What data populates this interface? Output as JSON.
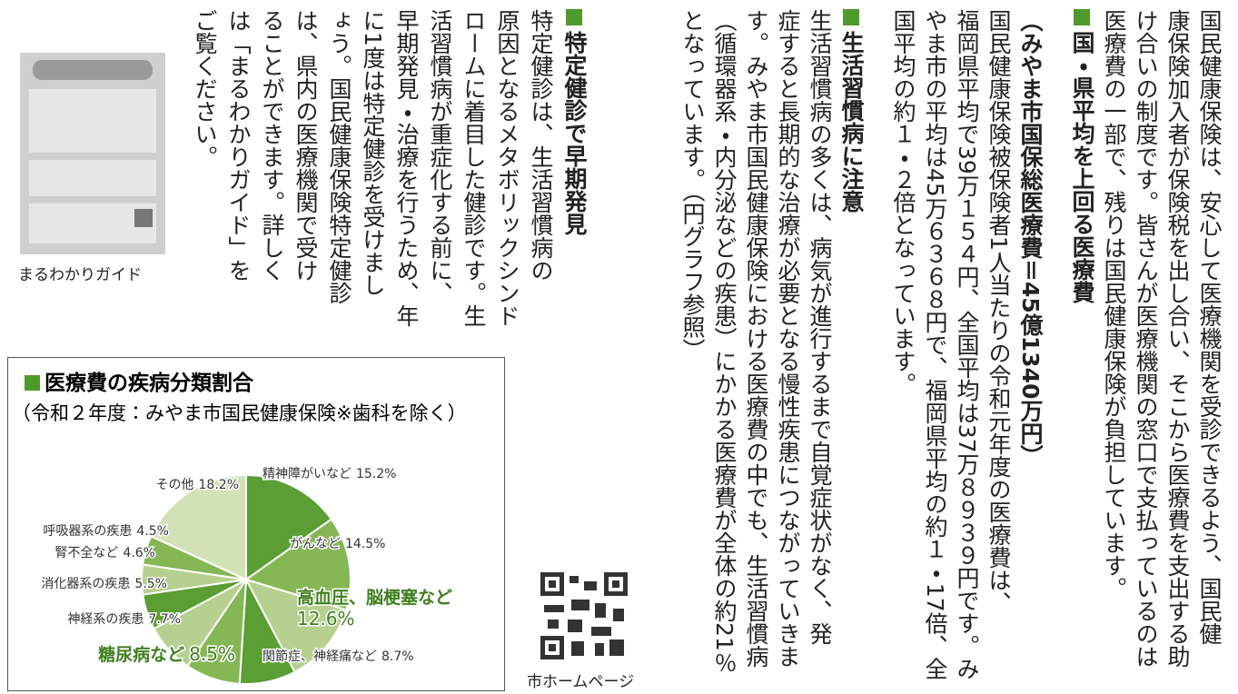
{
  "intro": {
    "lines": [
      "国民健康保険は、安心して医療機関を受診できるよう、国民健",
      "康保険加入者が保険税を出し合い、そこから医療費を支出する助",
      "け合いの制度です。皆さんが医療機関の窓口で支払っているのは",
      "医療費の一部で、残りは国民健康保険が負担しています。"
    ]
  },
  "sections": [
    {
      "heading": "国・県平均を上回る医療費",
      "subheading": "（みやま市国保総医療費＝45億1340万円）",
      "lines": [
        "国民健康保険被保険者1人当たりの令和元年度の医療費は、",
        "福岡県平均で39万１５４円、全国平均は37万８９３９円です。み",
        "やま市の平均は45万６３６８円で、福岡県平均の約１・17倍、全",
        "国平均の約１・２倍となっています。"
      ]
    },
    {
      "heading": "生活習慣病に注意",
      "lines": [
        "生活習慣病の多くは、病気が進行するまで自覚症状がなく、発",
        "症すると長期的な治療が必要となる慢性疾患につながっていきま",
        "す。みやま市国民健康保険における医療費の中でも、生活習慣病",
        "（循環器系・内分泌などの疾患）にかかる医療費が全体の約21％",
        "となっています。（円グラフ参照）"
      ]
    },
    {
      "heading": "特定健診で早期発見",
      "lines": [
        "特定健診は、生活習慣病の",
        "原因となるメタボリックシンド",
        "ロームに着目した健診です。生",
        "活習慣病が重症化する前に、",
        "早期発見・治療を行うため、年",
        "に1度は特定健診を受けまし",
        "ょう。国民健康保険特定健診",
        "は、県内の医療機関で受け",
        "ることができます。詳しく",
        "は「まるわかりガイド」を",
        "ご覧ください。"
      ]
    }
  ],
  "guide": {
    "caption": "まるわかりガイド"
  },
  "qr": {
    "caption": "市ホームページ"
  },
  "chart_data": {
    "type": "pie",
    "title": "医療費の疾病分類割合",
    "subtitle": "（令和２年度：みやま市国民健康保険※歯科を除く）",
    "categories": [
      "精神障がいなど",
      "がんなど",
      "高血圧、脳梗塞など",
      "関節症、神経痛など",
      "糖尿病など",
      "神経系の疾患",
      "消化器系の疾患",
      "腎不全など",
      "呼吸器系の疾患",
      "その他"
    ],
    "values": [
      15.2,
      14.5,
      12.6,
      8.7,
      8.5,
      7.7,
      5.5,
      4.6,
      4.5,
      18.2
    ],
    "value_labels": [
      "15.2%",
      "14.5%",
      "12.6%",
      "8.7%",
      "8.5%",
      "7.7%",
      "5.5%",
      "4.6%",
      "4.5%",
      "18.2%"
    ],
    "colors": [
      "#5b9e34",
      "#86b755",
      "#b6d08f",
      "#5b9e34",
      "#86b755",
      "#b6d08f",
      "#5b9e34",
      "#b6d08f",
      "#86b755",
      "#d2e2b6"
    ]
  }
}
